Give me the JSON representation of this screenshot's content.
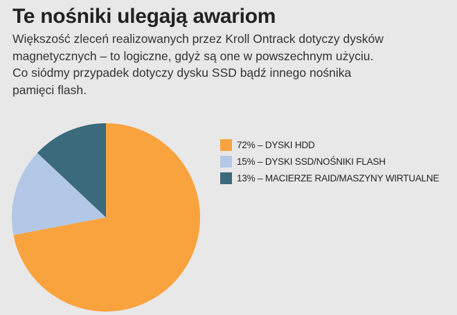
{
  "title": "Te nośniki ulegają awariom",
  "subtitle_lines": [
    "Większość zleceń realizowanych przez Kroll Ontrack dotyczy dysków",
    "magnetycznych – to logiczne, gdyż są one w powszechnym użyciu.",
    "Co siódmy przypadek dotyczy dysku SSD bądź innego nośnika",
    "pamięci flash."
  ],
  "chart_data": {
    "type": "pie",
    "slices": [
      {
        "label": "72% – DYSKI HDD",
        "value": 72,
        "color": "#f9a33f"
      },
      {
        "label": "15% – DYSKI SSD/NOŚNIKI FLASH",
        "value": 15,
        "color": "#b3c8e6"
      },
      {
        "label": "13% – MACIERZE RAID/MASZYNY WIRTUALNE",
        "value": 13,
        "color": "#3a6a7b"
      }
    ],
    "start": "12 o'clock",
    "direction": "clockwise",
    "legend_position": "right"
  }
}
